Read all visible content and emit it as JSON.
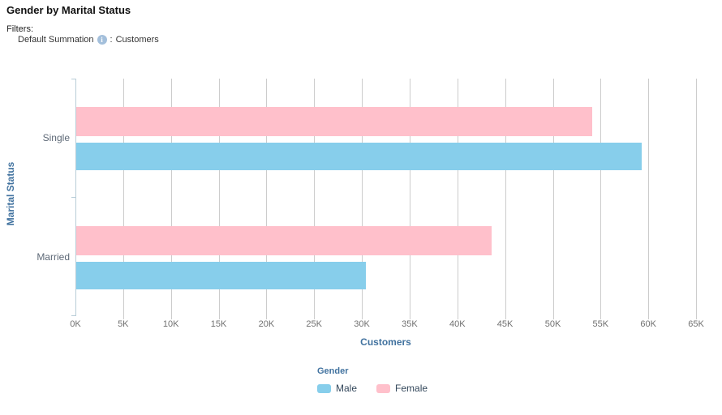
{
  "title": "Gender by Marital Status",
  "filters": {
    "label": "Filters:",
    "item": "Default Summation",
    "info_icon": "i",
    "separator": ":",
    "value": "Customers"
  },
  "chart_data": {
    "type": "bar",
    "orientation": "horizontal",
    "categories": [
      "Single",
      "Married"
    ],
    "series": [
      {
        "name": "Male",
        "color": "#87CEEB",
        "values": [
          59200,
          30300
        ]
      },
      {
        "name": "Female",
        "color": "#FFC0CB",
        "values": [
          54000,
          43500
        ]
      }
    ],
    "xlabel": "Customers",
    "ylabel": "Marital Status",
    "xlim": [
      0,
      65000
    ],
    "xtick_step": 5000,
    "xticks": [
      "0K",
      "5K",
      "10K",
      "15K",
      "20K",
      "25K",
      "30K",
      "35K",
      "40K",
      "45K",
      "50K",
      "55K",
      "60K",
      "65K"
    ],
    "grid": true,
    "legend_title": "Gender",
    "legend_position": "bottom"
  },
  "colors": {
    "male_bar": "#87CEEB",
    "female_bar": "#FFC0CB",
    "gridline": "#cccccc",
    "axis_line": "#b8cdd8",
    "axis_title_blue": "#41729f"
  }
}
